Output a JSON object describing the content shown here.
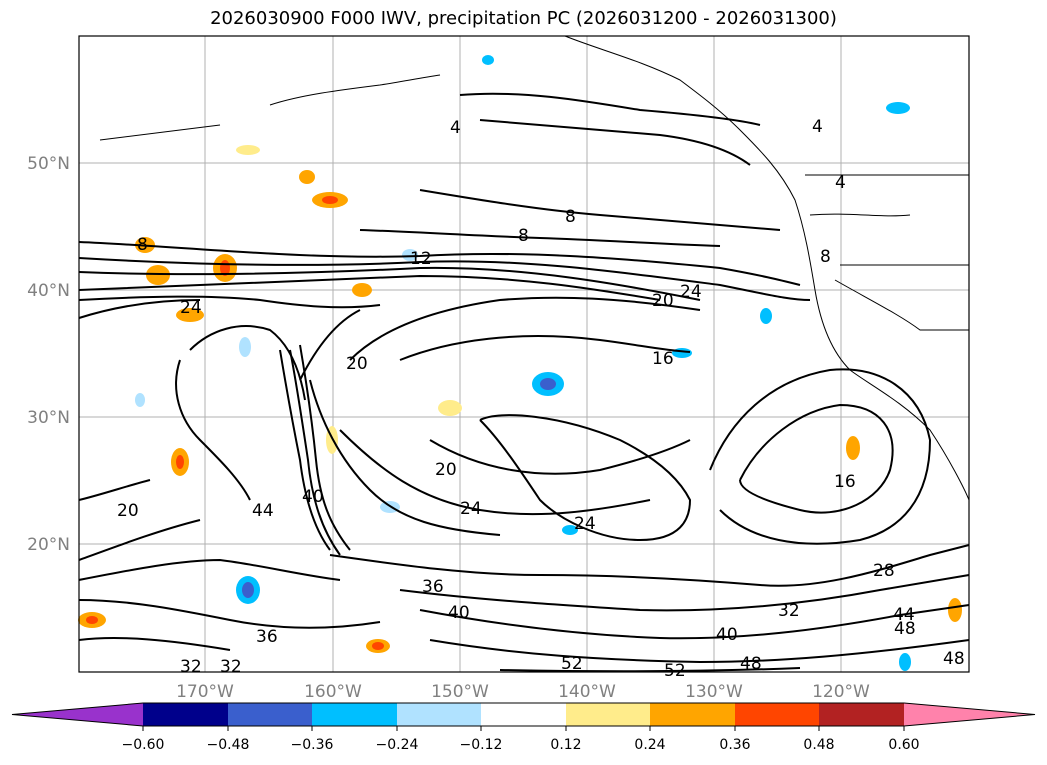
{
  "map": {
    "title": "2026030900 F000 IWV, precipitation PC (2026031200 - 2026031300)",
    "lat_labels": [
      "50°N",
      "40°N",
      "30°N",
      "20°N"
    ],
    "lon_labels": [
      "170°W",
      "160°W",
      "150°W",
      "140°W",
      "130°W",
      "120°W"
    ],
    "contour_labels": [
      "4",
      "4",
      "8",
      "8",
      "12",
      "20",
      "24",
      "24",
      "20",
      "16",
      "20",
      "24",
      "24",
      "20",
      "16",
      "44",
      "40",
      "36",
      "40",
      "36",
      "32",
      "28",
      "40",
      "48",
      "52",
      "52",
      "48",
      "44",
      "48",
      "32",
      "32",
      "8",
      "8",
      "4"
    ]
  },
  "colorbar": {
    "ticks": [
      "−0.60",
      "−0.48",
      "−0.36",
      "−0.24",
      "−0.12",
      "0.12",
      "0.24",
      "0.36",
      "0.48",
      "0.60"
    ],
    "colors": [
      "#9932cc",
      "#00008b",
      "#3a5fcd",
      "#00bfff",
      "#b0e2ff",
      "#ffffff",
      "#ffec8b",
      "#ffa500",
      "#ff4500",
      "#b22222",
      "#ff82ab"
    ]
  }
}
